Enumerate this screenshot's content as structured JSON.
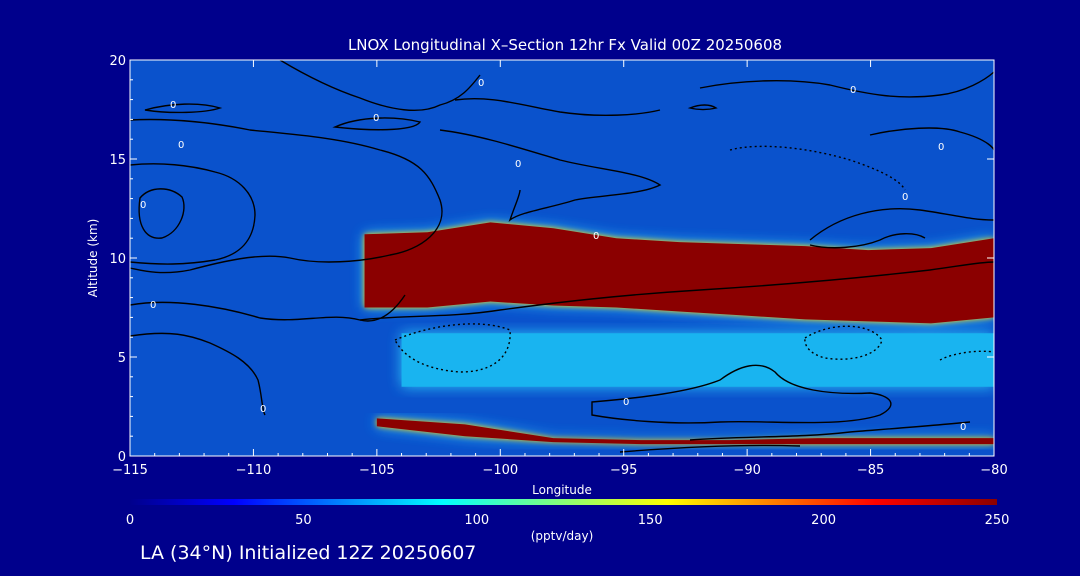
{
  "chart_data": {
    "type": "heatmap",
    "title": "LNOX Longitudinal X–Section 12hr  Fx Valid 00Z 20250608",
    "xlabel": "Longitude",
    "ylabel": "Altitude (km)",
    "xlim": [
      -115,
      -80
    ],
    "ylim": [
      0,
      20
    ],
    "x_ticks": [
      -115,
      -110,
      -105,
      -100,
      -95,
      -90,
      -85,
      -80
    ],
    "x_tick_labels": [
      "−115",
      "−110",
      "−105",
      "−100",
      "−95",
      "−90",
      "−85",
      "−80"
    ],
    "y_ticks": [
      0,
      5,
      10,
      15,
      20
    ],
    "y_tick_labels": [
      "0",
      "5",
      "10",
      "15",
      "20"
    ],
    "colorbar": {
      "label": "(pptv/day)",
      "min": 0,
      "max": 250,
      "ticks": [
        0,
        50,
        100,
        150,
        200,
        250
      ],
      "colormap": "jet (dark blue to dark red)"
    },
    "layers": [
      {
        "name": "upper LNOX maximum",
        "value_pptv_day": 250,
        "x_start": -105.5,
        "x_end": -80,
        "base_km": [
          7.5,
          7.5,
          7.8,
          7.6,
          7.5,
          7.3,
          7.1,
          6.9,
          6.8,
          6.7,
          7.0
        ],
        "top_km": [
          11.2,
          11.3,
          11.8,
          11.5,
          11.0,
          10.8,
          10.7,
          10.6,
          10.4,
          10.5,
          11.0
        ]
      },
      {
        "name": "mid-level moderate LNOX",
        "value_pptv_day": 90,
        "x_start": -104,
        "x_end": -80,
        "base_km": 3.5,
        "top_km": 6.2
      },
      {
        "name": "near-surface LNOX maximum",
        "value_pptv_day": 250,
        "x_start": -105,
        "x_end": -80,
        "base_km": [
          1.5,
          1.0,
          0.7,
          0.6,
          0.6,
          0.6,
          0.6,
          0.6
        ],
        "top_km": [
          1.9,
          1.6,
          0.9,
          0.8,
          0.8,
          0.9,
          0.9,
          0.9
        ]
      }
    ],
    "contour_labels": [
      "0"
    ],
    "grid": false,
    "legend": "none"
  },
  "footer": {
    "text": "LA (34°N) Initialized 12Z 20250607"
  },
  "colors": {
    "background": "#00008c",
    "axes_text": "#ffffff",
    "contour": "#000000"
  }
}
